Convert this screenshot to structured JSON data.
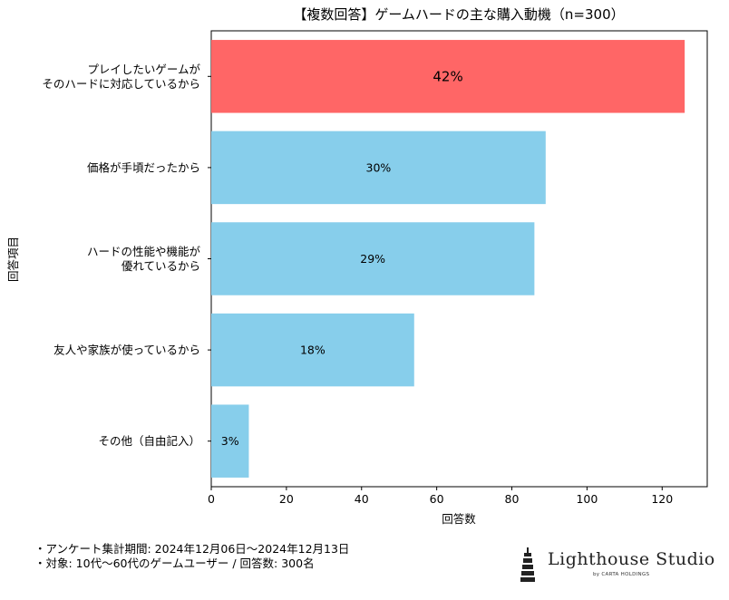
{
  "chart_data": {
    "type": "bar",
    "orientation": "horizontal",
    "title": "【複数回答】ゲームハードの主な購入動機（n=300）",
    "xlabel": "回答数",
    "ylabel": "回答項目",
    "xlim": [
      0,
      132
    ],
    "xticks": [
      0,
      20,
      40,
      60,
      80,
      100,
      120
    ],
    "grid": false,
    "categories": [
      "プレイしたいゲームが\nそのハードに対応しているから",
      "価格が手頃だったから",
      "ハードの性能や機能が\n優れているから",
      "友人や家族が使っているから",
      "その他（自由記入）"
    ],
    "values": [
      126,
      89,
      86,
      54,
      10
    ],
    "data_labels": [
      "42%",
      "30%",
      "29%",
      "18%",
      "3%"
    ],
    "colors": [
      "#ff6666",
      "#87ceeb",
      "#87ceeb",
      "#87ceeb",
      "#87ceeb"
    ]
  },
  "footer": {
    "line1": "・アンケート集計期間: 2024年12月06日〜2024年12月13日",
    "line2": "・対象: 10代〜60代のゲームユーザー / 回答数: 300名"
  },
  "logo": {
    "name": "Lighthouse Studio",
    "sub": "by CARTA HOLDINGS"
  }
}
